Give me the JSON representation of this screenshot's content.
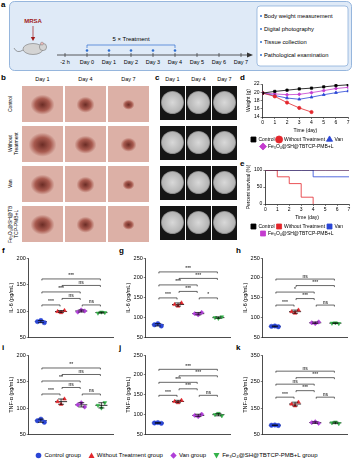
{
  "schematic": {
    "letter": "a",
    "inoculum": "MRSA",
    "treatment": "5 × Treatment",
    "timeline": [
      "-2 h",
      "Day 0",
      "Day 1",
      "Day 2",
      "Day 3",
      "Day 4",
      "Day 5",
      "Day 6",
      "Day 7"
    ],
    "endpoints": [
      "Body weight measurement",
      "Digital photography",
      "Tissue collection",
      "Pathological examination"
    ]
  },
  "wound_photos": {
    "letter": "b",
    "columns": [
      "Day 1",
      "Day 4",
      "Day 7"
    ],
    "rows": [
      "Control",
      "Without Treatment",
      "Van",
      "Fe₃O₄@SH@TBTCP-PMB+L"
    ]
  },
  "plate_photos": {
    "letter": "c",
    "columns": [
      "Day 1",
      "Day 4",
      "Day 7"
    ]
  },
  "chart_data": [
    {
      "letter": "d",
      "type": "line",
      "x_label": "Time (day)",
      "y_label": "Weight (g)",
      "x": [
        0,
        1,
        2,
        3,
        4,
        5,
        6,
        7
      ],
      "xlim": [
        0,
        7
      ],
      "xticks": [
        0,
        1,
        2,
        3,
        4,
        5,
        6,
        7
      ],
      "ylim": [
        14,
        22
      ],
      "yticks": [
        14,
        16,
        18,
        20,
        22
      ],
      "grid": false,
      "legend": "bottom",
      "line_style": "solid",
      "series": [
        {
          "name": "Control",
          "color": "#000000",
          "marker": "square",
          "values": [
            19.8,
            20.2,
            20.5,
            20.8,
            21.0,
            21.3,
            21.6,
            21.8
          ]
        },
        {
          "name": "Without Treatment",
          "color": "#e3262c",
          "marker": "circle",
          "values": [
            19.8,
            19.0,
            17.5,
            16.2,
            15.2,
            null,
            null,
            null
          ]
        },
        {
          "name": "Van",
          "color": "#2b46d6",
          "marker": "triangle",
          "values": [
            19.8,
            19.2,
            18.6,
            18.3,
            18.8,
            19.4,
            19.9,
            20.3
          ]
        },
        {
          "name": "Fe₃O₄@SH@TBTCP-PMB+L",
          "color": "#c43ccf",
          "marker": "diamond",
          "values": [
            19.8,
            19.6,
            19.4,
            19.5,
            19.9,
            20.4,
            20.9,
            21.2
          ]
        }
      ]
    },
    {
      "letter": "e",
      "type": "line",
      "x_label": "Time (day)",
      "y_label": "Percent survival (%)",
      "x": [
        0,
        1,
        2,
        3,
        4,
        5,
        6,
        7
      ],
      "xlim": [
        0,
        7
      ],
      "xticks": [
        0,
        1,
        2,
        3,
        4,
        5,
        6,
        7
      ],
      "ylim": [
        0,
        100
      ],
      "yticks": [
        0,
        50,
        100
      ],
      "grid": false,
      "legend": "bottom",
      "line_style": "step",
      "marker": "none",
      "series": [
        {
          "name": "Control",
          "color": "#000000",
          "values": [
            100,
            100,
            100,
            100,
            100,
            100,
            100,
            100
          ]
        },
        {
          "name": "Without Treatment",
          "color": "#e3262c",
          "values": [
            100,
            80,
            60,
            20,
            0,
            null,
            null,
            null
          ]
        },
        {
          "name": "Van",
          "color": "#2b46d6",
          "values": [
            100,
            100,
            100,
            100,
            80,
            80,
            80,
            80
          ]
        },
        {
          "name": "Fe₃O₄@SH@TBTCP-PMB+L",
          "color": "#c43ccf",
          "values": [
            100,
            100,
            100,
            100,
            100,
            100,
            100,
            100
          ]
        }
      ]
    },
    {
      "letter": "f",
      "type": "scatter",
      "y_label": "IL-6 (pg/mL)",
      "ylim": [
        50,
        200
      ],
      "yticks": [
        50,
        100,
        150,
        200
      ],
      "grid": false,
      "tick_labels": "y",
      "series": [
        {
          "name": "Control group",
          "color": "#2b46d6",
          "marker": "circle",
          "values": [
            80,
            82,
            78
          ],
          "mean": 80,
          "error": 2
        },
        {
          "name": "Without Treatment group",
          "color": "#e3262c",
          "marker": "triangle",
          "values": [
            99,
            97,
            101
          ],
          "mean": 99,
          "error": 2
        },
        {
          "name": "Van group",
          "color": "#b03fd8",
          "marker": "diamond",
          "values": [
            98,
            102,
            100
          ],
          "mean": 100,
          "error": 2
        },
        {
          "name": "Fe₃O₄@SH@TBTCP-PMB+L group",
          "color": "#33b249",
          "marker": "triangle-down",
          "values": [
            96,
            98,
            97
          ],
          "mean": 97,
          "error": 1
        }
      ],
      "significance": [
        {
          "between": [
            "Control group",
            "Without Treatment group"
          ],
          "label": "***"
        },
        {
          "between": [
            "Control group",
            "Van group"
          ],
          "label": "***"
        },
        {
          "between": [
            "Control group",
            "Fe₃O₄@SH@TBTCP-PMB+L group"
          ],
          "label": "***"
        },
        {
          "between": [
            "Without Treatment group",
            "Van group"
          ],
          "label": "ns"
        },
        {
          "between": [
            "Without Treatment group",
            "Fe₃O₄@SH@TBTCP-PMB+L group"
          ],
          "label": "ns"
        },
        {
          "between": [
            "Van group",
            "Fe₃O₄@SH@TBTCP-PMB+L group"
          ],
          "label": "ns"
        }
      ]
    },
    {
      "letter": "g",
      "type": "scatter",
      "y_label": "IL-6 (pg/mL)",
      "ylim": [
        50,
        250
      ],
      "yticks": [
        50,
        100,
        150,
        200,
        250
      ],
      "grid": false,
      "tick_labels": "y",
      "series": [
        {
          "name": "Control group",
          "color": "#2b46d6",
          "marker": "circle",
          "values": [
            82,
            85,
            79
          ],
          "mean": 82,
          "error": 3
        },
        {
          "name": "Without Treatment group",
          "color": "#e3262c",
          "marker": "triangle",
          "values": [
            133,
            129,
            137
          ],
          "mean": 133,
          "error": 4
        },
        {
          "name": "Van group",
          "color": "#b03fd8",
          "marker": "diamond",
          "values": [
            110,
            107,
            113
          ],
          "mean": 110,
          "error": 3
        },
        {
          "name": "Fe₃O₄@SH@TBTCP-PMB+L group",
          "color": "#33b249",
          "marker": "triangle-down",
          "values": [
            100,
            98,
            102
          ],
          "mean": 100,
          "error": 2
        }
      ],
      "significance": [
        {
          "between": [
            "Control group",
            "Without Treatment group"
          ],
          "label": "***"
        },
        {
          "between": [
            "Control group",
            "Van group"
          ],
          "label": "***"
        },
        {
          "between": [
            "Control group",
            "Fe₃O₄@SH@TBTCP-PMB+L group"
          ],
          "label": "***"
        },
        {
          "between": [
            "Without Treatment group",
            "Van group"
          ],
          "label": "***"
        },
        {
          "between": [
            "Without Treatment group",
            "Fe₃O₄@SH@TBTCP-PMB+L group"
          ],
          "label": "***"
        },
        {
          "between": [
            "Van group",
            "Fe₃O₄@SH@TBTCP-PMB+L group"
          ],
          "label": "*"
        }
      ]
    },
    {
      "letter": "h",
      "type": "scatter",
      "y_label": "IL-6 (pg/mL)",
      "ylim": [
        50,
        250
      ],
      "yticks": [
        50,
        100,
        150,
        200,
        250
      ],
      "grid": false,
      "tick_labels": "y",
      "series": [
        {
          "name": "Control group",
          "color": "#2b46d6",
          "marker": "circle",
          "values": [
            78,
            79,
            77
          ],
          "mean": 78,
          "error": 1
        },
        {
          "name": "Without Treatment group",
          "color": "#e3262c",
          "marker": "triangle",
          "values": [
            115,
            111,
            119
          ],
          "mean": 115,
          "error": 4
        },
        {
          "name": "Van group",
          "color": "#b03fd8",
          "marker": "diamond",
          "values": [
            87,
            85,
            89
          ],
          "mean": 87,
          "error": 2
        },
        {
          "name": "Fe₃O₄@SH@TBTCP-PMB+L group",
          "color": "#33b249",
          "marker": "triangle-down",
          "values": [
            86,
            87,
            85
          ],
          "mean": 86,
          "error": 1
        }
      ],
      "significance": [
        {
          "between": [
            "Control group",
            "Without Treatment group"
          ],
          "label": "***"
        },
        {
          "between": [
            "Control group",
            "Van group"
          ],
          "label": "*"
        },
        {
          "between": [
            "Control group",
            "Fe₃O₄@SH@TBTCP-PMB+L group"
          ],
          "label": "ns"
        },
        {
          "between": [
            "Without Treatment group",
            "Van group"
          ],
          "label": "***"
        },
        {
          "between": [
            "Without Treatment group",
            "Fe₃O₄@SH@TBTCP-PMB+L group"
          ],
          "label": "***"
        },
        {
          "between": [
            "Van group",
            "Fe₃O₄@SH@TBTCP-PMB+L group"
          ],
          "label": "ns"
        }
      ]
    },
    {
      "letter": "i",
      "type": "scatter",
      "y_label": "TNF-α (pg/mL)",
      "ylim": [
        50,
        200
      ],
      "yticks": [
        50,
        100,
        150,
        200
      ],
      "grid": false,
      "tick_labels": "y",
      "series": [
        {
          "name": "Control group",
          "color": "#2b46d6",
          "marker": "circle",
          "values": [
            76,
            79,
            73
          ],
          "mean": 76,
          "error": 3
        },
        {
          "name": "Without Treatment group",
          "color": "#e3262c",
          "marker": "triangle",
          "values": [
            112,
            107,
            117
          ],
          "mean": 112,
          "error": 5
        },
        {
          "name": "Van group",
          "color": "#b03fd8",
          "marker": "diamond",
          "values": [
            106,
            110,
            102
          ],
          "mean": 106,
          "error": 4
        },
        {
          "name": "Fe₃O₄@SH@TBTCP-PMB+L group",
          "color": "#33b249",
          "marker": "triangle-down",
          "values": [
            105,
            100,
            110
          ],
          "mean": 105,
          "error": 5
        }
      ],
      "significance": [
        {
          "between": [
            "Control group",
            "Without Treatment group"
          ],
          "label": "***"
        },
        {
          "between": [
            "Control group",
            "Van group"
          ],
          "label": "**"
        },
        {
          "between": [
            "Control group",
            "Fe₃O₄@SH@TBTCP-PMB+L group"
          ],
          "label": "**"
        },
        {
          "between": [
            "Without Treatment group",
            "Van group"
          ],
          "label": "ns"
        },
        {
          "between": [
            "Without Treatment group",
            "Fe₃O₄@SH@TBTCP-PMB+L group"
          ],
          "label": "ns"
        },
        {
          "between": [
            "Van group",
            "Fe₃O₄@SH@TBTCP-PMB+L group"
          ],
          "label": "ns"
        }
      ]
    },
    {
      "letter": "j",
      "type": "scatter",
      "y_label": "TNF-α (pg/mL)",
      "ylim": [
        50,
        250
      ],
      "yticks": [
        50,
        100,
        150,
        200,
        250
      ],
      "grid": false,
      "tick_labels": "y",
      "series": [
        {
          "name": "Control group",
          "color": "#2b46d6",
          "marker": "circle",
          "values": [
            79,
            80,
            78
          ],
          "mean": 79,
          "error": 1
        },
        {
          "name": "Without Treatment group",
          "color": "#e3262c",
          "marker": "triangle",
          "values": [
            133,
            130,
            136
          ],
          "mean": 133,
          "error": 3
        },
        {
          "name": "Van group",
          "color": "#b03fd8",
          "marker": "diamond",
          "values": [
            98,
            95,
            101
          ],
          "mean": 98,
          "error": 3
        },
        {
          "name": "Fe₃O₄@SH@TBTCP-PMB+L group",
          "color": "#33b249",
          "marker": "triangle-down",
          "values": [
            100,
            103,
            97
          ],
          "mean": 100,
          "error": 3
        }
      ],
      "significance": [
        {
          "between": [
            "Control group",
            "Without Treatment group"
          ],
          "label": "***"
        },
        {
          "between": [
            "Control group",
            "Van group"
          ],
          "label": "***"
        },
        {
          "between": [
            "Control group",
            "Fe₃O₄@SH@TBTCP-PMB+L group"
          ],
          "label": "***"
        },
        {
          "between": [
            "Without Treatment group",
            "Van group"
          ],
          "label": "***"
        },
        {
          "between": [
            "Without Treatment group",
            "Fe₃O₄@SH@TBTCP-PMB+L group"
          ],
          "label": "***"
        },
        {
          "between": [
            "Van group",
            "Fe₃O₄@SH@TBTCP-PMB+L group"
          ],
          "label": "ns"
        }
      ]
    },
    {
      "letter": "k",
      "type": "scatter",
      "y_label": "TNF-α (pg/mL)",
      "ylim": [
        50,
        350
      ],
      "yticks": [
        50,
        150,
        250,
        350
      ],
      "grid": false,
      "tick_labels": "y",
      "series": [
        {
          "name": "Control group",
          "color": "#2b46d6",
          "marker": "circle",
          "values": [
            85,
            86,
            84
          ],
          "mean": 85,
          "error": 1
        },
        {
          "name": "Without Treatment group",
          "color": "#e3262c",
          "marker": "triangle",
          "values": [
            165,
            158,
            172
          ],
          "mean": 165,
          "error": 7
        },
        {
          "name": "Van group",
          "color": "#b03fd8",
          "marker": "diamond",
          "values": [
            95,
            98,
            92
          ],
          "mean": 95,
          "error": 3
        },
        {
          "name": "Fe₃O₄@SH@TBTCP-PMB+L group",
          "color": "#33b249",
          "marker": "triangle-down",
          "values": [
            94,
            97,
            91
          ],
          "mean": 94,
          "error": 3
        }
      ],
      "significance": [
        {
          "between": [
            "Control group",
            "Without Treatment group"
          ],
          "label": "***"
        },
        {
          "between": [
            "Control group",
            "Van group"
          ],
          "label": "ns"
        },
        {
          "between": [
            "Control group",
            "Fe₃O₄@SH@TBTCP-PMB+L group"
          ],
          "label": "ns"
        },
        {
          "between": [
            "Without Treatment group",
            "Van group"
          ],
          "label": "***"
        },
        {
          "between": [
            "Without Treatment group",
            "Fe₃O₄@SH@TBTCP-PMB+L group"
          ],
          "label": "***"
        },
        {
          "between": [
            "Van group",
            "Fe₃O₄@SH@TBTCP-PMB+L group"
          ],
          "label": "ns"
        }
      ]
    }
  ],
  "shared_legend": {
    "position": "bottom",
    "entries": [
      {
        "name": "Control group",
        "color": "#2b46d6",
        "marker": "circle"
      },
      {
        "name": "Without Treatment group",
        "color": "#e3262c",
        "marker": "triangle"
      },
      {
        "name": "Van group",
        "color": "#b03fd8",
        "marker": "diamond"
      },
      {
        "name": "Fe₃O₄@SH@TBTCP-PMB+L group",
        "color": "#33b249",
        "marker": "triangle-down"
      }
    ]
  }
}
